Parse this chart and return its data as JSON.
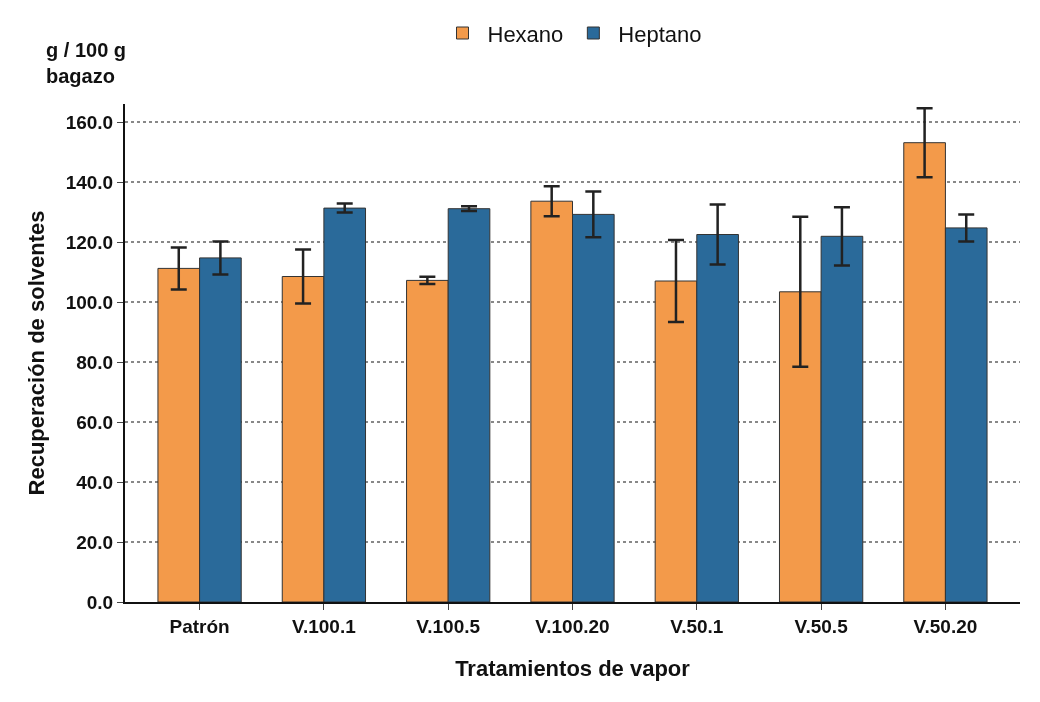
{
  "chart_data": {
    "type": "bar",
    "xlabel": "Tratamientos de vapor",
    "ylabel": "Recuperación de solventes",
    "annotations": [
      "g / 100 g\nbagazo"
    ],
    "categories": [
      "Patrón",
      "V.100.1",
      "V.100.5",
      "V.100.20",
      "V.50.1",
      "V.50.5",
      "V.50.20"
    ],
    "series": [
      {
        "name": "Hexano",
        "color": "#f39a4a",
        "values": [
          111.2,
          108.5,
          107.2,
          133.6,
          107,
          103.4,
          153.1
        ],
        "errors": [
          7,
          9,
          1.2,
          5,
          13.7,
          25,
          11.5
        ]
      },
      {
        "name": "Heptano",
        "color": "#2a6a9a",
        "values": [
          114.7,
          131.3,
          131.1,
          129.2,
          122.5,
          121.9,
          124.7
        ],
        "errors": [
          5.5,
          1.5,
          0.8,
          7.6,
          10,
          9.7,
          4.5
        ]
      }
    ],
    "ylim": [
      0,
      166
    ],
    "yticks": [
      {
        "value": 0,
        "label": "0.0"
      },
      {
        "value": 20,
        "label": "20.0"
      },
      {
        "value": 40,
        "label": "40.0"
      },
      {
        "value": 60,
        "label": "60.0"
      },
      {
        "value": 80,
        "label": "80.0"
      },
      {
        "value": 100,
        "label": "100.0"
      },
      {
        "value": 120,
        "label": "120.0"
      },
      {
        "value": 140,
        "label": "140.0"
      },
      {
        "value": 160,
        "label": "160.0"
      }
    ],
    "grid": "y",
    "legend": "top"
  }
}
